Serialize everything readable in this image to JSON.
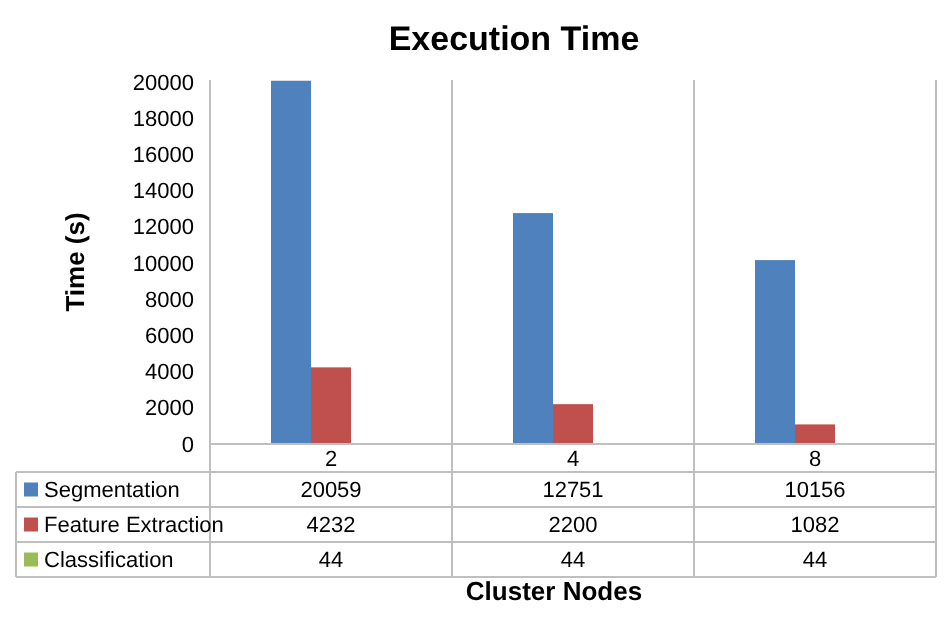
{
  "chart_data": {
    "type": "bar",
    "title": "Execution Time",
    "xlabel": "Cluster Nodes",
    "ylabel": "Time (s)",
    "categories": [
      "2",
      "4",
      "8"
    ],
    "series": [
      {
        "name": "Segmentation",
        "color": "#4f81bd",
        "values": [
          20059,
          12751,
          10156
        ]
      },
      {
        "name": "Feature Extraction",
        "color": "#c0504d",
        "values": [
          4232,
          2200,
          1082
        ]
      },
      {
        "name": "Classification",
        "color": "#9bbb59",
        "values": [
          44,
          44,
          44
        ]
      }
    ],
    "ylim": [
      0,
      20100
    ],
    "yticks": [
      0,
      2000,
      4000,
      6000,
      8000,
      10000,
      12000,
      14000,
      16000,
      18000,
      20000
    ],
    "grid": false,
    "legend": "bottom",
    "data_labels": true
  }
}
